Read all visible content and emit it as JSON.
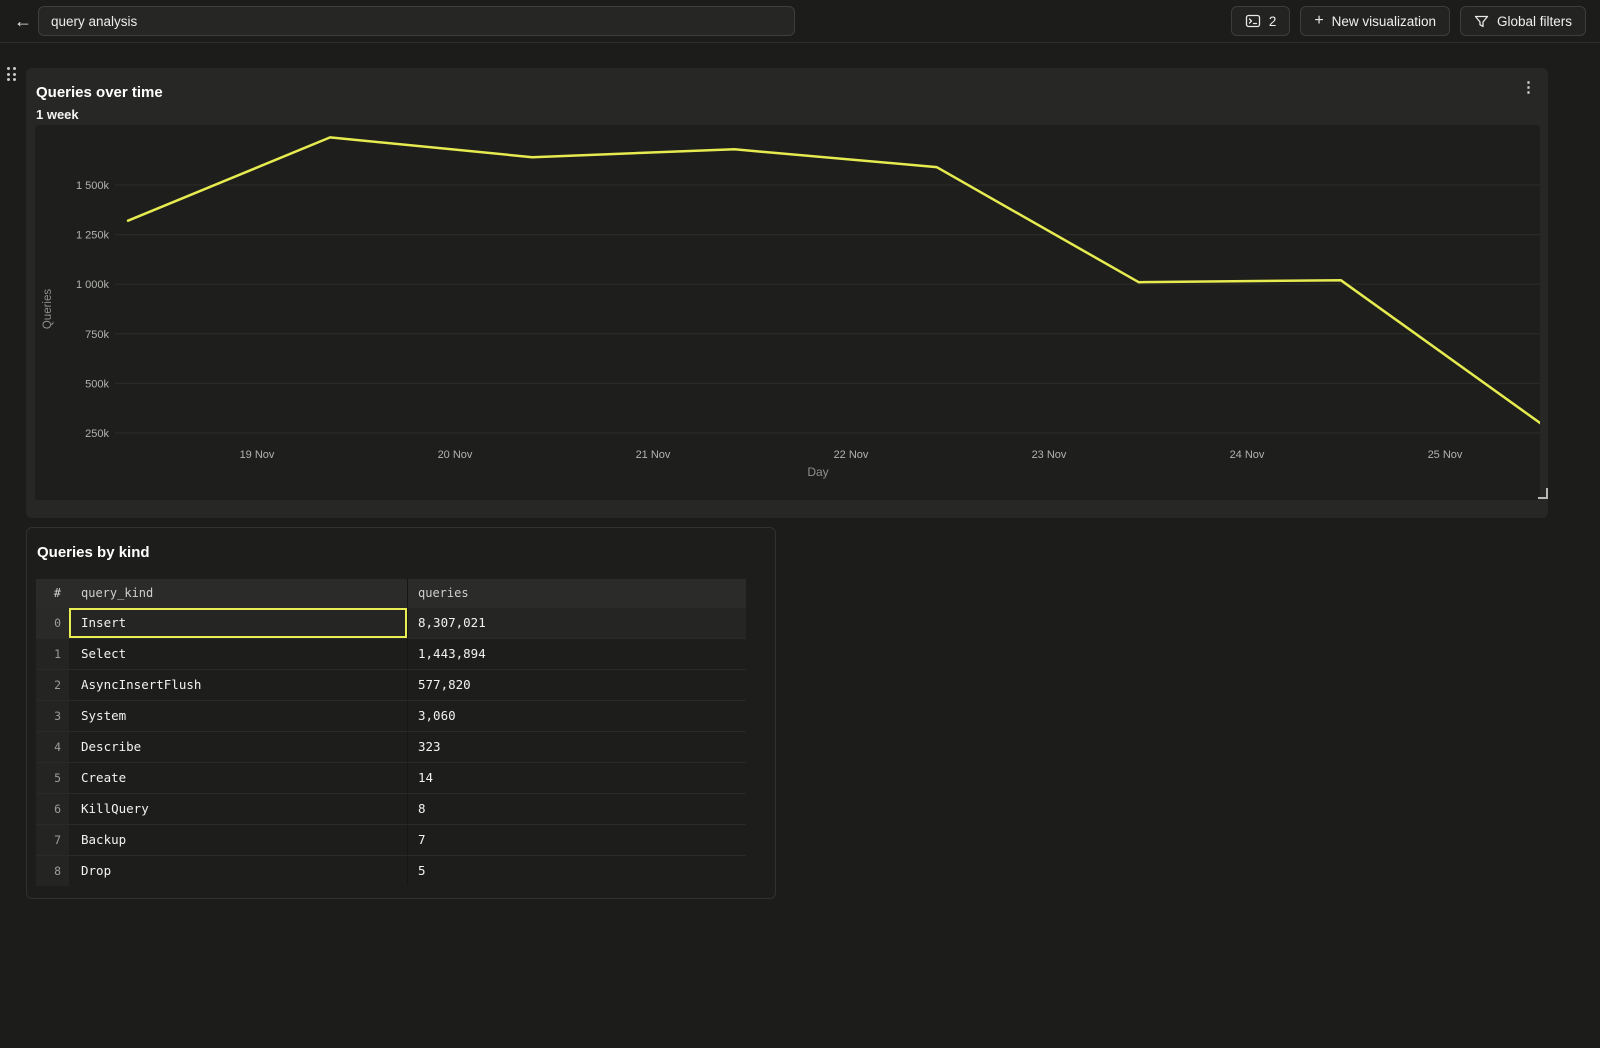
{
  "topbar": {
    "back_icon": "←",
    "title_value": "query analysis",
    "console_count": "2",
    "plus_icon": "+",
    "new_visualization_label": "New visualization",
    "global_filters_label": "Global filters"
  },
  "chart_panel": {
    "kebab_icon": "⋮"
  },
  "chart_data": {
    "type": "line",
    "title": "Queries over time",
    "subtitle": "1 week",
    "xlabel": "Day",
    "ylabel": "Queries",
    "x_tick_labels": [
      "19 Nov",
      "20 Nov",
      "21 Nov",
      "22 Nov",
      "23 Nov",
      "24 Nov",
      "25 Nov"
    ],
    "y_ticks": [
      {
        "label": "250k",
        "value": 250000
      },
      {
        "label": "500k",
        "value": 500000
      },
      {
        "label": "750k",
        "value": 750000
      },
      {
        "label": "1 000k",
        "value": 1000000
      },
      {
        "label": "1 250k",
        "value": 1250000
      },
      {
        "label": "1 500k",
        "value": 1500000
      }
    ],
    "ylim": [
      0,
      1800000
    ],
    "grid": true,
    "legend": false,
    "series": [
      {
        "name": "Queries",
        "color": "#e6eb4f",
        "values": [
          1320000,
          1740000,
          1640000,
          1680000,
          1590000,
          1010000,
          1020000,
          290000
        ]
      }
    ]
  },
  "table_panel": {
    "title": "Queries by kind",
    "columns": [
      "#",
      "query_kind",
      "queries"
    ],
    "rows": [
      {
        "index": "0",
        "query_kind": "Insert",
        "queries": "8,307,021",
        "selected": true
      },
      {
        "index": "1",
        "query_kind": "Select",
        "queries": "1,443,894",
        "selected": false
      },
      {
        "index": "2",
        "query_kind": "AsyncInsertFlush",
        "queries": "577,820",
        "selected": false
      },
      {
        "index": "3",
        "query_kind": "System",
        "queries": "3,060",
        "selected": false
      },
      {
        "index": "4",
        "query_kind": "Describe",
        "queries": "323",
        "selected": false
      },
      {
        "index": "5",
        "query_kind": "Create",
        "queries": "14",
        "selected": false
      },
      {
        "index": "6",
        "query_kind": "KillQuery",
        "queries": "8",
        "selected": false
      },
      {
        "index": "7",
        "query_kind": "Backup",
        "queries": "7",
        "selected": false
      },
      {
        "index": "8",
        "query_kind": "Drop",
        "queries": "5",
        "selected": false
      }
    ]
  },
  "colors": {
    "line_accent": "#e6eb4f",
    "selected_cell_border": "#e9ee52",
    "panel_bg": "#272726",
    "canvas_bg": "#1e1e1c",
    "page_bg": "#1c1c1a"
  }
}
